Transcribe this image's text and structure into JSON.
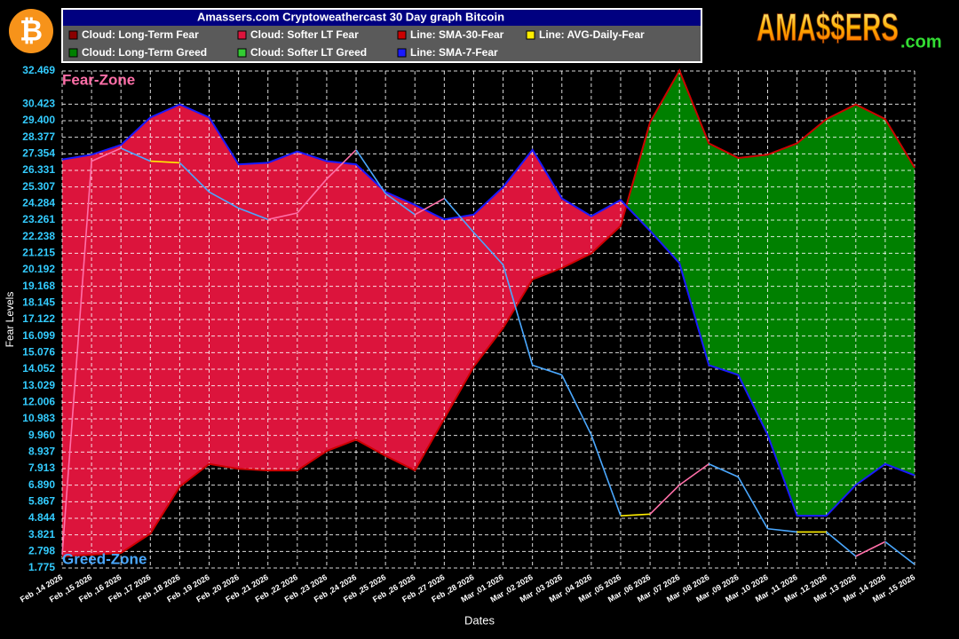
{
  "chart_data": {
    "type": "line",
    "title": "Amassers.com Cryptoweathercast 30 Day graph Bitcoin",
    "logo": "AMA$$ERS",
    "logo_suffix": ".com",
    "icon": "₿",
    "y_label": "Fear Levels",
    "x_label": "Dates",
    "annotations": [
      "Fear-Zone",
      "Greed-Zone"
    ],
    "categories": [
      "Feb ,14 2026",
      "Feb ,15 2026",
      "Feb ,16 2026",
      "Feb ,17 2026",
      "Feb ,18 2026",
      "Feb ,19 2026",
      "Feb ,20 2026",
      "Feb ,21 2026",
      "Feb ,22 2026",
      "Feb ,23 2026",
      "Feb ,24 2026",
      "Feb ,25 2026",
      "Feb ,26 2026",
      "Feb ,27 2026",
      "Feb ,28 2026",
      "Mar ,01 2026",
      "Mar ,02 2026",
      "Mar ,03 2026",
      "Mar ,04 2026",
      "Mar ,05 2026",
      "Mar ,06 2026",
      "Mar ,07 2026",
      "Mar ,08 2026",
      "Mar ,09 2026",
      "Mar ,10 2026",
      "Mar ,11 2026",
      "Mar ,12 2026",
      "Mar ,13 2026",
      "Mar ,14 2026",
      "Mar ,15 2026"
    ],
    "clouds": [
      {
        "name": "Cloud: Long-Term Fear",
        "color": "#8b0000"
      },
      {
        "name": "Cloud: Softer LT Fear",
        "color": "#dc143c"
      },
      {
        "name": "Cloud: Long-Term Greed",
        "color": "#008000"
      },
      {
        "name": "Cloud: Softer LT Greed",
        "color": "#33cc33"
      }
    ],
    "series": [
      {
        "name": "Line: SMA-30-Fear",
        "color": "#cc0000",
        "values": [
          2.5,
          2.6,
          2.7,
          3.9,
          6.8,
          8.2,
          7.9,
          7.8,
          7.8,
          9.0,
          9.7,
          8.7,
          7.8,
          11.0,
          14.2,
          16.6,
          19.6,
          20.3,
          21.2,
          22.9,
          29.3,
          32.5,
          28.0,
          27.1,
          27.3,
          28.0,
          29.5,
          30.4,
          29.5,
          26.5
        ]
      },
      {
        "name": "Line: SMA-7-Fear",
        "color": "#1a1aff",
        "values": [
          27.0,
          27.3,
          27.9,
          29.6,
          30.4,
          29.6,
          26.7,
          26.8,
          27.5,
          26.9,
          26.7,
          25.0,
          24.2,
          23.3,
          23.6,
          25.3,
          27.6,
          24.6,
          23.5,
          24.5,
          22.6,
          20.6,
          14.3,
          13.7,
          10.0,
          5.0,
          5.0,
          6.9,
          8.2,
          7.5
        ]
      },
      {
        "name": "Line: AVG-Daily-Fear",
        "color": "#ffee00",
        "values": [
          2.6,
          26.9,
          27.7,
          26.9,
          26.8,
          25.0,
          24.0,
          23.3,
          23.7,
          25.8,
          27.6,
          24.9,
          23.6,
          24.6,
          22.5,
          20.5,
          14.3,
          13.7,
          10.0,
          5.0,
          5.1,
          6.9,
          8.2,
          7.4,
          4.2,
          4.0,
          4.0,
          2.5,
          3.4,
          2.0
        ]
      }
    ],
    "ylim": [
      1.775,
      32.469
    ],
    "yticks": [
      {
        "value": 1.775,
        "label": "1.775"
      },
      {
        "value": 2.798,
        "label": "2.798"
      },
      {
        "value": 3.821,
        "label": "3.821"
      },
      {
        "value": 4.844,
        "label": "4.844"
      },
      {
        "value": 5.867,
        "label": "5.867"
      },
      {
        "value": 6.89,
        "label": "6.890"
      },
      {
        "value": 7.913,
        "label": "7.913"
      },
      {
        "value": 8.937,
        "label": "8.937"
      },
      {
        "value": 9.96,
        "label": "9.960"
      },
      {
        "value": 10.983,
        "label": "10.983"
      },
      {
        "value": 12.006,
        "label": "12.006"
      },
      {
        "value": 13.029,
        "label": "13.029"
      },
      {
        "value": 14.052,
        "label": "14.052"
      },
      {
        "value": 15.076,
        "label": "15.076"
      },
      {
        "value": 16.099,
        "label": "16.099"
      },
      {
        "value": 17.122,
        "label": "17.122"
      },
      {
        "value": 18.145,
        "label": "18.145"
      },
      {
        "value": 19.168,
        "label": "19.168"
      },
      {
        "value": 20.192,
        "label": "20.192"
      },
      {
        "value": 21.215,
        "label": "21.215"
      },
      {
        "value": 22.238,
        "label": "22.238"
      },
      {
        "value": 23.261,
        "label": "23.261"
      },
      {
        "value": 24.284,
        "label": "24.284"
      },
      {
        "value": 25.307,
        "label": "25.307"
      },
      {
        "value": 26.331,
        "label": "26.331"
      },
      {
        "value": 27.354,
        "label": "27.354"
      },
      {
        "value": 28.377,
        "label": "28.377"
      },
      {
        "value": 29.4,
        "label": "29.400"
      },
      {
        "value": 30.423,
        "label": "30.423"
      },
      {
        "value": 32.469,
        "label": "32.469"
      }
    ],
    "grid": true
  }
}
